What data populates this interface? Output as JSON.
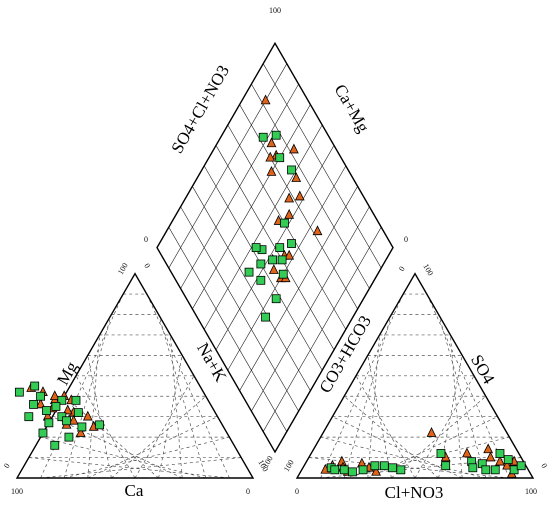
{
  "chart_data": {
    "type": "scatter",
    "subtype": "piper-trilinear",
    "axis_labels": {
      "cation_left": "Mg",
      "cation_right": "Na+K",
      "cation_bottom": "Ca",
      "anion_left": "CO3+HCO3",
      "anion_right": "SO4",
      "anion_bottom": "Cl+NO3",
      "diamond_left": "SO4+Cl+NO3",
      "diamond_right": "Ca+Mg"
    },
    "tick_labels": {
      "cation_top_left": "100",
      "cation_top_right": "0",
      "cation_left_end": "0",
      "cation_bottom_left": "100",
      "cation_bottom_right": "0",
      "cation_right_end": "100",
      "anion_top_left": "0",
      "anion_top_right": "100",
      "anion_left_end": "100",
      "anion_bottom_left": "0",
      "anion_bottom_right": "100",
      "anion_right_end": "0",
      "diamond_top": "100",
      "diamond_left": "0",
      "diamond_right": "0",
      "diamond_bottom": "100"
    },
    "grid": true,
    "colors": {
      "group_a": "#33cc55",
      "group_b": "#e0631a"
    },
    "series": [
      {
        "marker": "square",
        "color": "#33cc55",
        "cations": [
          [
            26,
            52
          ],
          [
            25,
            60
          ],
          [
            32,
            58
          ],
          [
            38,
            62
          ],
          [
            30,
            66
          ],
          [
            40,
            70
          ],
          [
            27,
            73
          ],
          [
            36,
            75
          ],
          [
            22,
            78
          ],
          [
            45,
            70
          ],
          [
            33,
            71
          ],
          [
            20,
            68
          ],
          [
            38,
            56
          ],
          [
            16,
            76
          ],
          [
            30,
            80
          ],
          [
            42,
            78
          ],
          [
            28,
            65
          ],
          [
            35,
            66
          ]
        ],
        "anions": [
          [
            12,
            5
          ],
          [
            14,
            4
          ],
          [
            18,
            4
          ],
          [
            22,
            3
          ],
          [
            26,
            4
          ],
          [
            30,
            6
          ],
          [
            34,
            6
          ],
          [
            38,
            5
          ],
          [
            42,
            4
          ],
          [
            55,
            12
          ],
          [
            60,
            6
          ],
          [
            70,
            8
          ],
          [
            72,
            5
          ],
          [
            75,
            7
          ],
          [
            78,
            4
          ],
          [
            80,
            12
          ],
          [
            82,
            4
          ],
          [
            85,
            9
          ],
          [
            90,
            4
          ],
          [
            92,
            6
          ]
        ],
        "diamond": [
          [
            72,
            82
          ],
          [
            78,
            77
          ],
          [
            74,
            70
          ],
          [
            76,
            62
          ],
          [
            60,
            52
          ],
          [
            52,
            48
          ],
          [
            58,
            44
          ],
          [
            46,
            48
          ],
          [
            44,
            55
          ],
          [
            40,
            52
          ],
          [
            36,
            48
          ],
          [
            42,
            58
          ],
          [
            33,
            55
          ],
          [
            38,
            37
          ],
          [
            29,
            37
          ],
          [
            50,
            44
          ],
          [
            47,
            40
          ]
        ]
      },
      {
        "marker": "triangle",
        "color": "#e0631a",
        "cations": [
          [
            25,
            55
          ],
          [
            30,
            55
          ],
          [
            32,
            60
          ],
          [
            28,
            62
          ],
          [
            38,
            65
          ],
          [
            40,
            60
          ],
          [
            34,
            68
          ],
          [
            42,
            68
          ],
          [
            30,
            72
          ],
          [
            36,
            72
          ],
          [
            44,
            72
          ],
          [
            26,
            66
          ],
          [
            38,
            58
          ],
          [
            22,
            62
          ],
          [
            33,
            62
          ],
          [
            40,
            64
          ]
        ],
        "anions": [
          [
            10,
            4
          ],
          [
            12,
            6
          ],
          [
            15,
            8
          ],
          [
            17,
            5
          ],
          [
            20,
            3
          ],
          [
            24,
            7
          ],
          [
            28,
            5
          ],
          [
            32,
            3
          ],
          [
            46,
            22
          ],
          [
            58,
            10
          ],
          [
            66,
            12
          ],
          [
            74,
            14
          ],
          [
            77,
            10
          ],
          [
            82,
            8
          ],
          [
            86,
            6
          ],
          [
            88,
            8
          ],
          [
            90,
            2
          ]
        ],
        "diamond": [
          [
            82,
            90
          ],
          [
            74,
            77
          ],
          [
            73,
            72
          ],
          [
            70,
            74
          ],
          [
            67,
            70
          ],
          [
            82,
            66
          ],
          [
            68,
            56
          ],
          [
            76,
            58
          ],
          [
            73,
            52
          ],
          [
            64,
            52
          ],
          [
            58,
            55
          ],
          [
            72,
            36
          ],
          [
            46,
            48
          ],
          [
            45,
            40
          ],
          [
            52,
            44
          ],
          [
            54,
            42
          ],
          [
            44,
            45
          ],
          [
            47,
            38
          ]
        ]
      }
    ]
  }
}
